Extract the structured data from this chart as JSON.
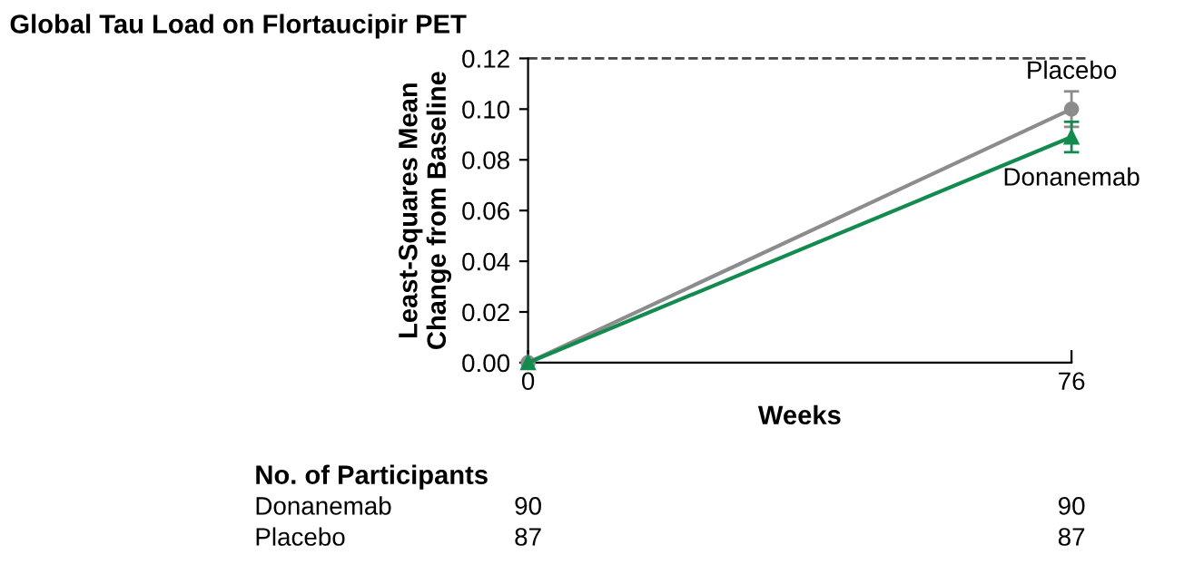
{
  "chart_data": {
    "type": "line",
    "title": "Global Tau Load on Flortaucipir PET",
    "xlabel": "Weeks",
    "ylabel": "Least-Squares Mean\nChange from Baseline",
    "x": [
      0,
      76
    ],
    "xlim": [
      0,
      76
    ],
    "xticks": [
      0,
      76
    ],
    "ylim": [
      0,
      0.12
    ],
    "yticks": [
      {
        "value": 0,
        "label": "0.00"
      },
      {
        "value": 0.02,
        "label": "0.02"
      },
      {
        "value": 0.04,
        "label": "0.04"
      },
      {
        "value": 0.06,
        "label": "0.06"
      },
      {
        "value": 0.08,
        "label": "0.08"
      },
      {
        "value": 0.1,
        "label": "0.10"
      },
      {
        "value": 0.12,
        "label": "0.12"
      }
    ],
    "series": [
      {
        "name": "Placebo",
        "color": "#8c8c8c",
        "values": [
          0,
          0.1
        ],
        "errors": [
          null,
          0.007
        ],
        "marker": "circle"
      },
      {
        "name": "Donanemab",
        "color": "#138a4e",
        "values": [
          0,
          0.089
        ],
        "errors": [
          null,
          0.006
        ],
        "marker": "triangle"
      }
    ],
    "ref_lines": [
      {
        "axis": "y",
        "value": 0.12,
        "line_style": "dashed",
        "color": "#444444"
      }
    ],
    "grid": false,
    "legend": false,
    "annotations": [
      "No. of Participants",
      "Donanemab",
      "90",
      "90",
      "Placebo",
      "87",
      "87"
    ]
  }
}
